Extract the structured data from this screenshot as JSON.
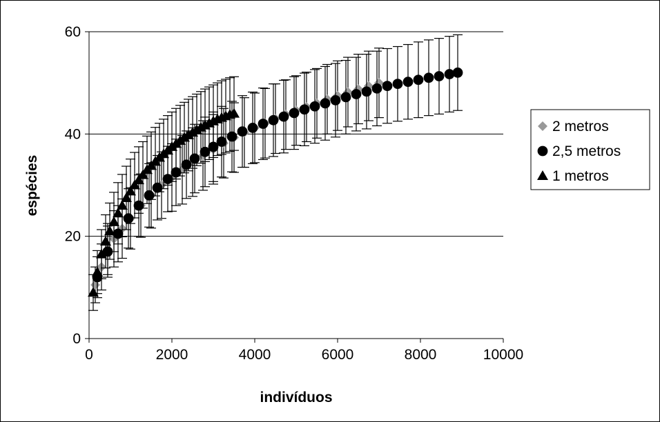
{
  "chart_data": {
    "type": "scatter",
    "title": "",
    "xlabel": "indivíduos",
    "ylabel": "espécies",
    "xlim": [
      0,
      10000
    ],
    "ylim": [
      0,
      60
    ],
    "xticks": [
      0,
      2000,
      4000,
      6000,
      8000,
      10000
    ],
    "yticks": [
      0,
      20,
      40,
      60
    ],
    "grid": "horizontal major gridlines",
    "legend_position": "right",
    "error_bars": true,
    "series": [
      {
        "name": "2 metros",
        "marker": "diamond",
        "color": "#999999",
        "x": [
          150,
          300,
          450,
          600,
          800,
          1000,
          1250,
          1500,
          1750,
          2000,
          2250,
          2500,
          2750,
          3000,
          3250,
          3500,
          3750,
          4000,
          4250,
          4500,
          4750,
          5000,
          5250,
          5500,
          5750,
          6000,
          6250,
          6500,
          6750,
          7000
        ],
        "y": [
          10.5,
          14.0,
          17.5,
          19.5,
          21.5,
          23.5,
          26.0,
          28.0,
          30.0,
          31.5,
          33.0,
          34.5,
          35.8,
          37.0,
          38.2,
          39.3,
          40.3,
          41.2,
          42.1,
          43.0,
          43.8,
          44.6,
          45.3,
          46.0,
          46.8,
          47.5,
          48.2,
          48.8,
          49.4,
          50.0
        ],
        "err": [
          3.5,
          4.5,
          5.0,
          5.5,
          5.8,
          6.0,
          6.2,
          6.4,
          6.5,
          6.6,
          6.7,
          6.7,
          6.8,
          6.8,
          6.8,
          6.8,
          6.8,
          6.8,
          6.8,
          6.8,
          6.8,
          6.8,
          6.8,
          6.8,
          6.8,
          6.8,
          6.8,
          6.8,
          6.8,
          6.8
        ]
      },
      {
        "name": "2,5 metros",
        "marker": "circle",
        "color": "#000000",
        "x": [
          200,
          450,
          700,
          950,
          1200,
          1450,
          1650,
          1900,
          2100,
          2350,
          2550,
          2800,
          3000,
          3200,
          3450,
          3700,
          3950,
          4200,
          4450,
          4700,
          4950,
          5200,
          5450,
          5700,
          5950,
          6200,
          6450,
          6700,
          6950,
          7200,
          7450,
          7700,
          7950,
          8200,
          8450,
          8700,
          8900
        ],
        "y": [
          12.0,
          17.0,
          20.5,
          23.5,
          26.0,
          28.0,
          29.5,
          31.2,
          32.5,
          34.0,
          35.2,
          36.5,
          37.5,
          38.5,
          39.5,
          40.5,
          41.2,
          42.0,
          42.7,
          43.4,
          44.1,
          44.8,
          45.4,
          46.0,
          46.6,
          47.2,
          47.8,
          48.3,
          48.9,
          49.4,
          49.8,
          50.2,
          50.6,
          51.0,
          51.3,
          51.7,
          52.0
        ],
        "err": [
          4.0,
          5.0,
          5.5,
          5.8,
          6.0,
          6.2,
          6.3,
          6.4,
          6.5,
          6.6,
          6.7,
          6.8,
          6.8,
          6.9,
          6.9,
          7.0,
          7.0,
          7.0,
          7.1,
          7.1,
          7.1,
          7.1,
          7.2,
          7.2,
          7.2,
          7.2,
          7.2,
          7.3,
          7.3,
          7.3,
          7.3,
          7.3,
          7.4,
          7.4,
          7.4,
          7.4,
          7.4
        ]
      },
      {
        "name": "1 metros",
        "marker": "triangle",
        "color": "#000000",
        "x": [
          100,
          200,
          300,
          400,
          500,
          600,
          700,
          800,
          900,
          1000,
          1100,
          1200,
          1300,
          1400,
          1500,
          1600,
          1700,
          1800,
          1900,
          2000,
          2100,
          2200,
          2300,
          2400,
          2500,
          2600,
          2700,
          2800,
          2900,
          3000,
          3100,
          3200,
          3300,
          3400,
          3500
        ],
        "y": [
          9.0,
          13.0,
          16.5,
          19.0,
          21.0,
          22.8,
          24.5,
          26.0,
          27.5,
          28.8,
          30.0,
          31.0,
          32.0,
          33.0,
          33.8,
          34.6,
          35.4,
          36.1,
          36.8,
          37.5,
          38.1,
          38.7,
          39.3,
          39.8,
          40.3,
          40.8,
          41.3,
          41.7,
          42.1,
          42.5,
          42.9,
          43.2,
          43.5,
          43.8,
          44.0
        ],
        "err": [
          3.5,
          4.2,
          4.8,
          5.2,
          5.5,
          5.8,
          6.0,
          6.1,
          6.2,
          6.3,
          6.4,
          6.5,
          6.5,
          6.6,
          6.6,
          6.7,
          6.7,
          6.8,
          6.8,
          6.8,
          6.9,
          6.9,
          6.9,
          7.0,
          7.0,
          7.0,
          7.0,
          7.1,
          7.1,
          7.1,
          7.1,
          7.2,
          7.2,
          7.2,
          7.2
        ]
      }
    ]
  }
}
